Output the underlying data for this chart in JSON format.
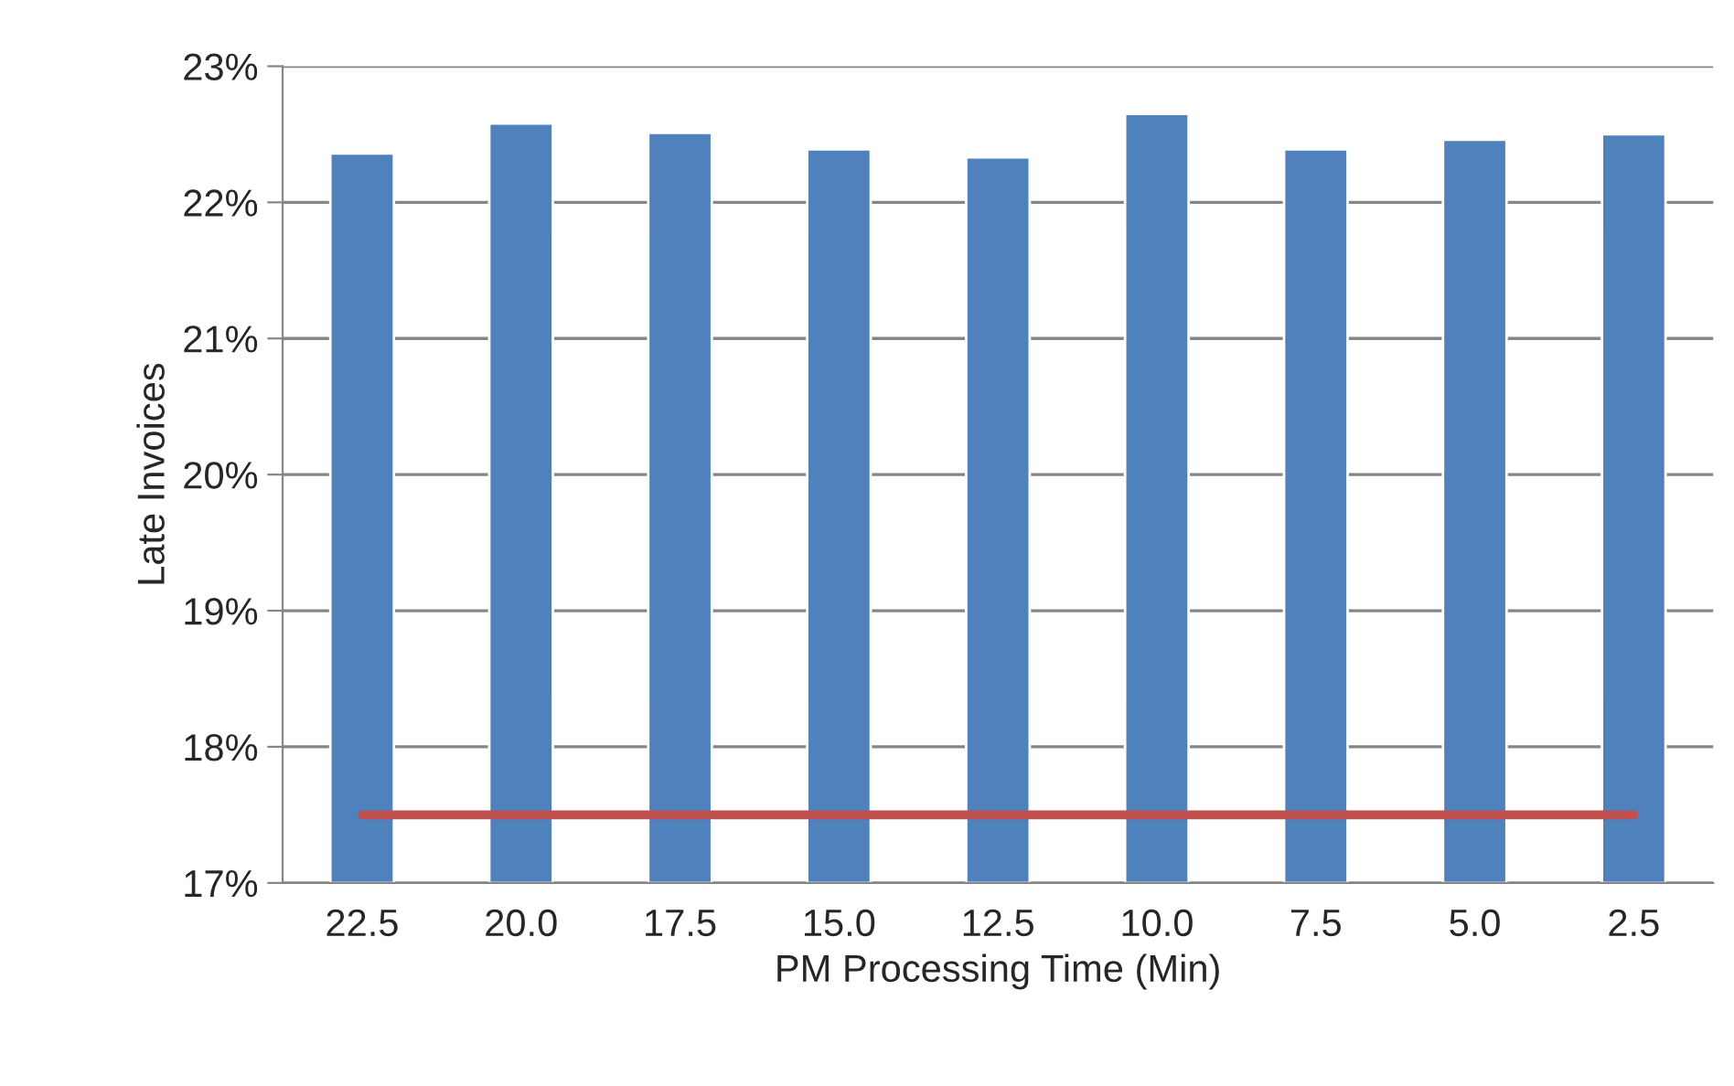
{
  "chart_data": {
    "type": "bar",
    "xlabel": "PM Processing Time (Min)",
    "ylabel": "Late Invoices",
    "categories": [
      "22.5",
      "20.0",
      "17.5",
      "15.0",
      "12.5",
      "10.0",
      "7.5",
      "5.0",
      "2.5"
    ],
    "series": [
      {
        "color": "#4f81bd",
        "values": [
          22.36,
          22.58,
          22.51,
          22.39,
          22.33,
          22.65,
          22.39,
          22.46,
          22.5
        ]
      },
      {
        "type": "line",
        "color": "#c0504d",
        "values": [
          17.5,
          17.5,
          17.5,
          17.5,
          17.5,
          17.5,
          17.5,
          17.5,
          17.5
        ]
      }
    ],
    "ylim": [
      17,
      23
    ],
    "yticks": [
      {
        "value": 17,
        "label": "17%"
      },
      {
        "value": 18,
        "label": "18%"
      },
      {
        "value": 19,
        "label": "19%"
      },
      {
        "value": 20,
        "label": "20%"
      },
      {
        "value": 21,
        "label": "21%"
      },
      {
        "value": 22,
        "label": "22%"
      },
      {
        "value": 23,
        "label": "23%"
      }
    ],
    "grid": "y",
    "legend": false
  }
}
